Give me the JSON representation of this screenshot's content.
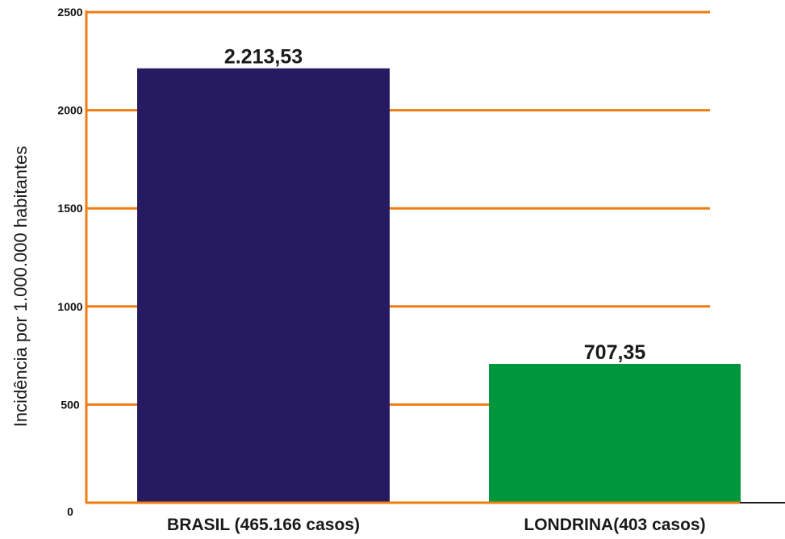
{
  "chart_data": {
    "type": "bar",
    "title": "",
    "xlabel": "",
    "ylabel": "Incidência por 1.000.000 habitantes",
    "ylim": [
      0,
      2500
    ],
    "yticks": [
      0,
      500,
      1000,
      1500,
      2000,
      2500
    ],
    "yticks_labels": [
      "0",
      "500",
      "1000",
      "1500",
      "2000",
      "2500"
    ],
    "grid": true,
    "legend": "none",
    "categories": [
      "BRASIL (465.166 casos)",
      "LONDRINA(403 casos)"
    ],
    "values": [
      2213.53,
      707.35
    ],
    "value_labels": [
      "2.213,53",
      "707,35"
    ],
    "bar_colors": [
      "#261b60",
      "#00963e"
    ],
    "grid_color": "#ee7d11",
    "axis_color": "#ee7d11"
  }
}
